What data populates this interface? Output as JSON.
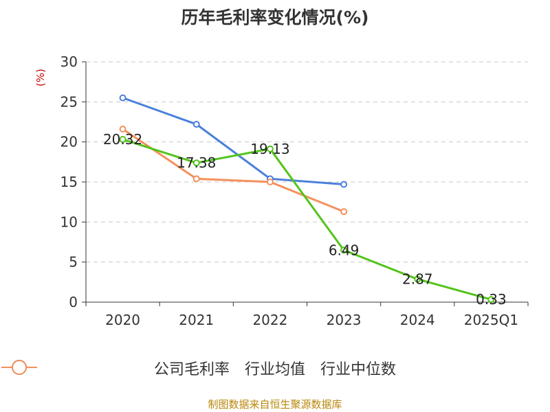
{
  "chart_data": {
    "type": "line",
    "title": "历年毛利率变化情况(%)",
    "ylabel": "(%)",
    "xlabel": "",
    "categories": [
      "2020",
      "2021",
      "2022",
      "2023",
      "2024",
      "2025Q1"
    ],
    "ylim": [
      0,
      30
    ],
    "yticks": [
      0,
      5,
      10,
      15,
      20,
      25,
      30
    ],
    "grid": true,
    "legend_position": "bottom",
    "series": [
      {
        "name": "公司毛利率",
        "color": "#52c41a",
        "values": [
          20.32,
          17.38,
          19.13,
          6.49,
          2.87,
          0.33
        ],
        "labels": [
          "20.32",
          "17.38",
          "19.13",
          "6.49",
          "2.87",
          "0.33"
        ]
      },
      {
        "name": "行业均值",
        "color": "#4a7fdc",
        "values": [
          25.5,
          22.2,
          15.4,
          14.7,
          null,
          null
        ]
      },
      {
        "name": "行业中位数",
        "color": "#f5905b",
        "values": [
          21.6,
          15.4,
          15.0,
          11.3,
          null,
          null
        ]
      }
    ]
  },
  "source": "制图数据来自恒生聚源数据库"
}
